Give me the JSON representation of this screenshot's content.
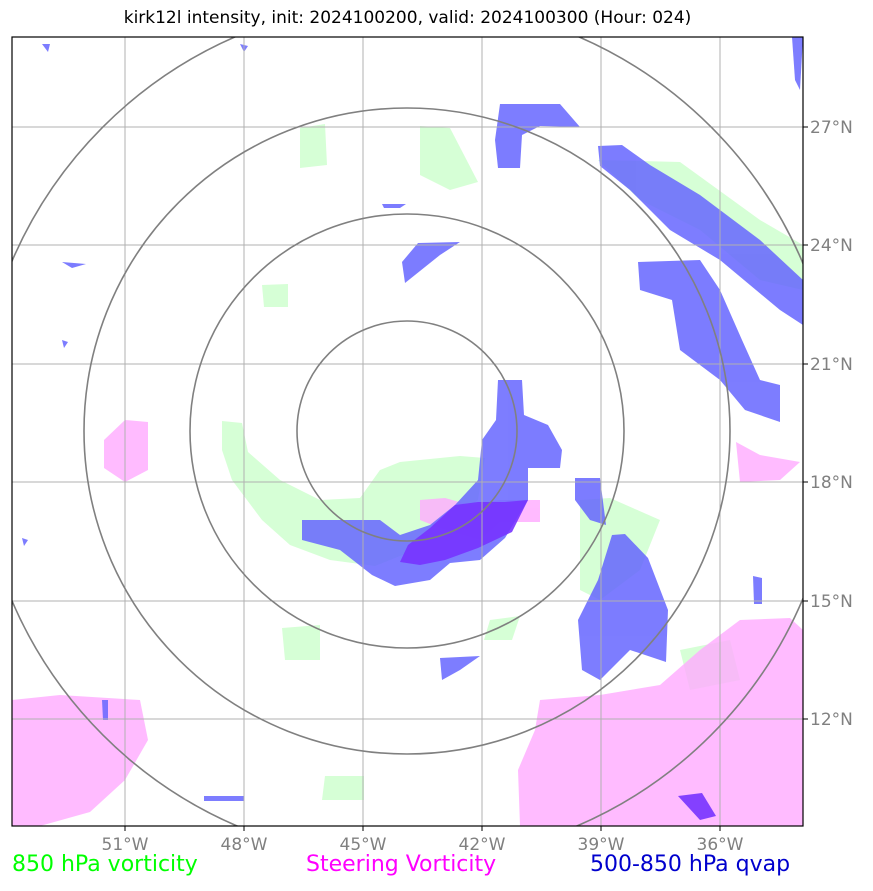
{
  "title": "kirk12l intensity, init: 2024100200, valid: 2024100300 (Hour: 024)",
  "lon_labels": [
    "51°W",
    "48°W",
    "45°W",
    "42°W",
    "39°W",
    "36°W"
  ],
  "lat_labels": [
    "27°N",
    "24°N",
    "21°N",
    "18°N",
    "15°N",
    "12°N"
  ],
  "legend": {
    "green": "850 hPa vorticity",
    "magenta": "Steering Vorticity",
    "blue": "500-850 hPa qvap"
  },
  "colors": {
    "green_fill": "#ccffcc",
    "magenta_fill": "#ffaaff",
    "blue_fill": "#6666ff",
    "overlap_fill": "#7733ff",
    "grid": "#b0b0b0",
    "rings": "#808080",
    "legend_green": "#00ff00",
    "legend_magenta": "#ff00ff",
    "legend_blue": "#0000cd"
  },
  "chart_data": {
    "type": "map",
    "lon_ticks": [
      -51,
      -48,
      -45,
      -42,
      -39,
      -36
    ],
    "lat_ticks": [
      27,
      24,
      21,
      18,
      15,
      12
    ],
    "storm_center": {
      "lon": -43.9,
      "lat": 19.9
    },
    "range_rings": 4
  }
}
